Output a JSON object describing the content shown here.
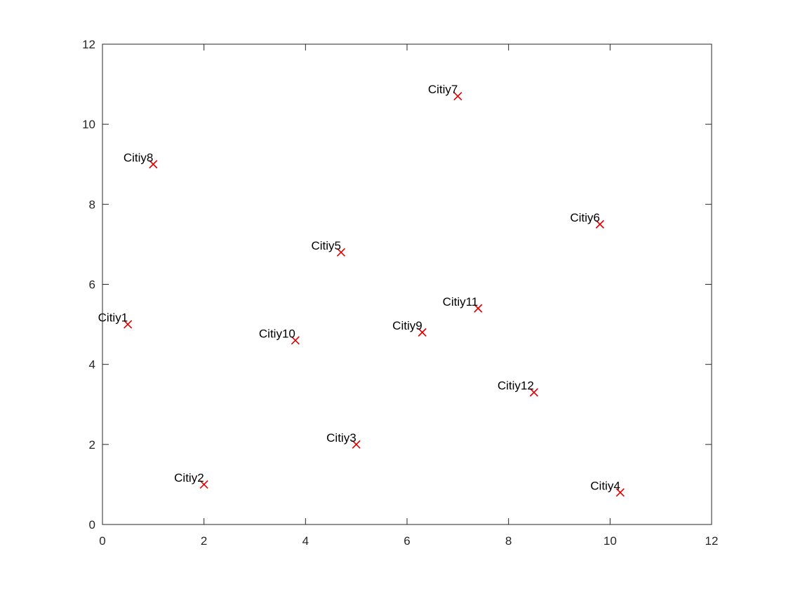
{
  "chart_data": {
    "type": "scatter",
    "title": "",
    "xlabel": "",
    "ylabel": "",
    "xlim": [
      0,
      12
    ],
    "ylim": [
      0,
      12
    ],
    "x_ticks": [
      "0",
      "2",
      "4",
      "6",
      "8",
      "10",
      "12"
    ],
    "y_ticks": [
      "0",
      "2",
      "4",
      "6",
      "8",
      "10",
      "12"
    ],
    "grid": false,
    "legend": "none",
    "marker": "x",
    "marker_color": "#e00000",
    "axis_color": "#262626",
    "points": [
      {
        "label": "Citiy1",
        "x": 0.5,
        "y": 5.0
      },
      {
        "label": "Citiy2",
        "x": 2.0,
        "y": 1.0
      },
      {
        "label": "Citiy3",
        "x": 5.0,
        "y": 2.0
      },
      {
        "label": "Citiy4",
        "x": 10.2,
        "y": 0.8
      },
      {
        "label": "Citiy5",
        "x": 4.7,
        "y": 6.8
      },
      {
        "label": "Citiy6",
        "x": 9.8,
        "y": 7.5
      },
      {
        "label": "Citiy7",
        "x": 7.0,
        "y": 10.7
      },
      {
        "label": "Citiy8",
        "x": 1.0,
        "y": 9.0
      },
      {
        "label": "Citiy9",
        "x": 6.3,
        "y": 4.8
      },
      {
        "label": "Citiy10",
        "x": 3.8,
        "y": 4.6
      },
      {
        "label": "Citiy11",
        "x": 7.4,
        "y": 5.4
      },
      {
        "label": "Citiy12",
        "x": 8.5,
        "y": 3.3
      }
    ]
  }
}
